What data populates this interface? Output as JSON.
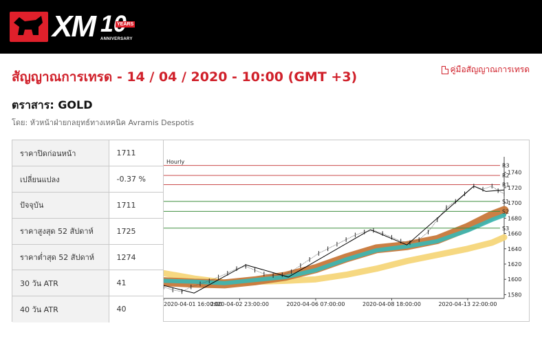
{
  "brand": {
    "name": "XM",
    "anniversary_number": "10",
    "anniversary_years": "YEARS",
    "anniversary_text": "ANNIVERSARY"
  },
  "header": {
    "title": "สัญญาณการเทรด - 14 / 04 / 2020 - 10:00 (GMT +3)",
    "guide_link": "คู่มือสัญญาณการเทรด"
  },
  "instrument": {
    "label": "ตราสาร: GOLD"
  },
  "byline": "โดย: หัวหน้าฝ่ายกลยุทธ์ทางเทคนิค Avramis Despotis",
  "stats": [
    {
      "label": "ราคาปิดก่อนหน้า",
      "value": "1711"
    },
    {
      "label": "เปลี่ยนแปลง",
      "value": "-0.37 %"
    },
    {
      "label": "ปัจจุบัน",
      "value": "1711"
    },
    {
      "label": "ราคาสูงสุด 52 สัปดาห์",
      "value": "1725"
    },
    {
      "label": "ราคาต่ำสุด 52 สัปดาห์",
      "value": "1274"
    },
    {
      "label": "30 วัน ATR",
      "value": "41"
    },
    {
      "label": "40 วัน ATR",
      "value": "40"
    }
  ],
  "colors": {
    "brand_red": "#d0202a",
    "resistance": "#c94a4a",
    "support": "#3e8e3e",
    "price_line": "#000000",
    "band_teal": "#3fb5b0",
    "band_orange": "#c8783a",
    "band_yellow": "#f5d67a"
  },
  "chart_data": {
    "type": "line",
    "timeframe": "Hourly",
    "ylim": [
      1575,
      1755
    ],
    "y_ticks": [
      1580,
      1600,
      1620,
      1640,
      1660,
      1680,
      1700,
      1720,
      1740
    ],
    "x_tick_labels": [
      "2020-04-01 16:00:00",
      "2020-04-02 23:00:00",
      "2020-04-06 07:00:00",
      "2020-04-08 18:00:00",
      "2020-04-13 22:00:00"
    ],
    "x_tick_index": [
      0,
      25,
      50,
      75,
      100
    ],
    "x_max": 112,
    "levels": [
      {
        "name": "R3",
        "value": 1749,
        "kind": "resistance"
      },
      {
        "name": "R2",
        "value": 1736,
        "kind": "resistance"
      },
      {
        "name": "R1",
        "value": 1724,
        "kind": "resistance"
      },
      {
        "name": "S1",
        "value": 1702,
        "kind": "support"
      },
      {
        "name": "S2",
        "value": 1689,
        "kind": "support"
      },
      {
        "name": "S3",
        "value": 1667,
        "kind": "support"
      }
    ],
    "zigzag": {
      "x": [
        0,
        10,
        27,
        41,
        68,
        80,
        102,
        106,
        112
      ],
      "y": [
        1592,
        1582,
        1619,
        1603,
        1665,
        1645,
        1722,
        1715,
        1717
      ]
    },
    "price": {
      "x": [
        0,
        3,
        6,
        9,
        12,
        15,
        18,
        21,
        24,
        27,
        30,
        33,
        36,
        39,
        42,
        45,
        48,
        51,
        54,
        57,
        60,
        63,
        66,
        69,
        72,
        75,
        78,
        81,
        84,
        87,
        90,
        93,
        96,
        99,
        102,
        105,
        108,
        110,
        112
      ],
      "y": [
        1590,
        1586,
        1584,
        1590,
        1594,
        1598,
        1603,
        1608,
        1614,
        1617,
        1612,
        1607,
        1605,
        1606,
        1610,
        1618,
        1626,
        1634,
        1640,
        1646,
        1652,
        1658,
        1662,
        1664,
        1660,
        1655,
        1650,
        1648,
        1652,
        1662,
        1678,
        1694,
        1702,
        1712,
        1722,
        1718,
        1722,
        1716,
        1712
      ]
    },
    "band_orange_mid": {
      "x": [
        0,
        10,
        20,
        30,
        40,
        50,
        60,
        70,
        80,
        90,
        100,
        108,
        112
      ],
      "y": [
        1597,
        1595,
        1594,
        1598,
        1604,
        1614,
        1628,
        1640,
        1644,
        1652,
        1668,
        1684,
        1690
      ]
    },
    "band_teal_mid": {
      "x": [
        0,
        10,
        20,
        30,
        40,
        50,
        60,
        70,
        80,
        90,
        100,
        108,
        112
      ],
      "y": [
        1598,
        1597,
        1595,
        1599,
        1603,
        1612,
        1626,
        1638,
        1643,
        1650,
        1664,
        1678,
        1684
      ]
    },
    "band_yellow_mid": {
      "x": [
        0,
        10,
        20,
        30,
        40,
        50,
        60,
        70,
        80,
        90,
        100,
        108,
        112
      ],
      "y": [
        1608,
        1601,
        1596,
        1597,
        1598,
        1600,
        1606,
        1614,
        1624,
        1632,
        1640,
        1648,
        1655
      ]
    }
  }
}
